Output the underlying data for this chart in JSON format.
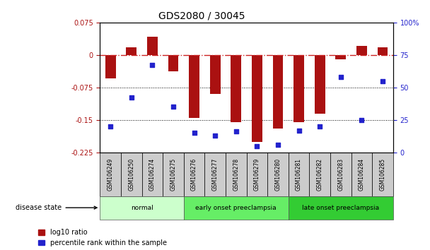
{
  "title": "GDS2080 / 30045",
  "samples": [
    "GSM106249",
    "GSM106250",
    "GSM106274",
    "GSM106275",
    "GSM106276",
    "GSM106277",
    "GSM106278",
    "GSM106279",
    "GSM106280",
    "GSM106281",
    "GSM106282",
    "GSM106283",
    "GSM106284",
    "GSM106285"
  ],
  "log10_ratio": [
    -0.055,
    0.018,
    0.042,
    -0.038,
    -0.145,
    -0.09,
    -0.155,
    -0.2,
    -0.17,
    -0.155,
    -0.135,
    -0.01,
    0.02,
    0.018
  ],
  "percentile_rank": [
    20,
    42,
    67,
    35,
    15,
    13,
    16,
    5,
    6,
    17,
    20,
    58,
    25,
    55
  ],
  "bar_color": "#aa1111",
  "dot_color": "#2222cc",
  "ref_line_color": "#cc2222",
  "grid_color": "#000000",
  "background_color": "#ffffff",
  "ylim_left": [
    -0.225,
    0.075
  ],
  "ylim_right": [
    0,
    100
  ],
  "yticks_left": [
    -0.225,
    -0.15,
    -0.075,
    0,
    0.075
  ],
  "yticks_right": [
    0,
    25,
    50,
    75,
    100
  ],
  "groups": [
    {
      "label": "normal",
      "start": 0,
      "end": 4,
      "color": "#ccffcc"
    },
    {
      "label": "early onset preeclampsia",
      "start": 4,
      "end": 9,
      "color": "#66ee66"
    },
    {
      "label": "late onset preeclampsia",
      "start": 9,
      "end": 14,
      "color": "#33cc33"
    }
  ],
  "legend_items": [
    {
      "label": "log10 ratio",
      "color": "#aa1111"
    },
    {
      "label": "percentile rank within the sample",
      "color": "#2222cc"
    }
  ]
}
